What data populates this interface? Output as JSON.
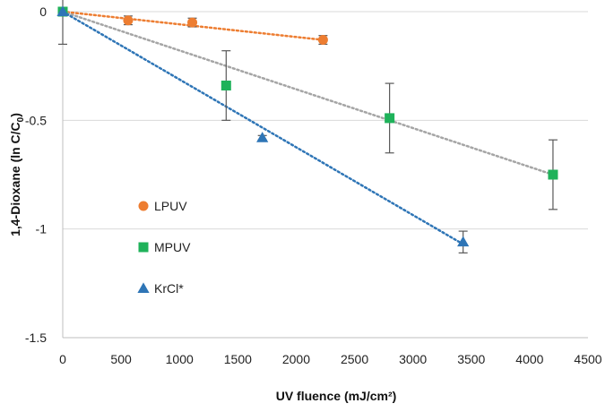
{
  "chart_data": {
    "type": "scatter",
    "xlabel": "UV fluence (mJ/cm²)",
    "ylabel_main": "1,4-Dioxane (ln C/C",
    "ylabel_sub": "0",
    "ylabel_close": ")",
    "xlim": [
      0,
      4500
    ],
    "ylim": [
      -1.5,
      0
    ],
    "x_ticks": [
      "0",
      "500",
      "1000",
      "1500",
      "2000",
      "2500",
      "3000",
      "3500",
      "4000",
      "4500"
    ],
    "y_ticks": [
      "0",
      "-0.5",
      "-1",
      "-1.5"
    ],
    "x_tick_values": [
      0,
      500,
      1000,
      1500,
      2000,
      2500,
      3000,
      3500,
      4000,
      4500
    ],
    "y_tick_values": [
      0,
      -0.5,
      -1,
      -1.5
    ],
    "grid": "horizontal",
    "legend_placement": "center-left",
    "series": [
      {
        "name": "LPUV",
        "marker": "circle",
        "color": "#ED7D31",
        "trendline_color": "#ED7D31",
        "x": [
          0,
          560,
          1110,
          2230
        ],
        "y": [
          0,
          -0.04,
          -0.05,
          -0.13
        ],
        "err": [
          0,
          0.02,
          0.02,
          0.02
        ],
        "trend": [
          [
            0,
            0
          ],
          [
            2230,
            -0.13
          ]
        ]
      },
      {
        "name": "MPUV",
        "marker": "square",
        "color": "#1FB25A",
        "trendline_color": "#A5A5A5",
        "x": [
          0,
          1400,
          2800,
          4200
        ],
        "y": [
          0,
          -0.34,
          -0.49,
          -0.75
        ],
        "err": [
          0.15,
          0.16,
          0.16,
          0.16
        ],
        "trend": [
          [
            0,
            0
          ],
          [
            4200,
            -0.75
          ]
        ]
      },
      {
        "name": "KrCl*",
        "marker": "triangle",
        "color": "#2E75B6",
        "trendline_color": "#2E75B6",
        "x": [
          0,
          1710,
          3430
        ],
        "y": [
          0,
          -0.58,
          -1.06
        ],
        "err": [
          0,
          0.01,
          0.05
        ],
        "trend": [
          [
            0,
            0
          ],
          [
            3430,
            -1.07
          ]
        ]
      }
    ]
  }
}
